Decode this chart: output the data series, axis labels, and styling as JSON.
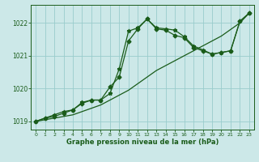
{
  "xlabel": "Graphe pression niveau de la mer (hPa)",
  "bg_color": "#cce8e8",
  "grid_color": "#99cccc",
  "line_color": "#1a5c1a",
  "ylim": [
    1018.75,
    1022.55
  ],
  "xlim": [
    -0.5,
    23.5
  ],
  "yticks": [
    1019,
    1020,
    1021,
    1022
  ],
  "xticks": [
    0,
    1,
    2,
    3,
    4,
    5,
    6,
    7,
    8,
    9,
    10,
    11,
    12,
    13,
    14,
    15,
    16,
    17,
    18,
    19,
    20,
    21,
    22,
    23
  ],
  "line1_x": [
    0,
    1,
    2,
    3,
    4,
    5,
    6,
    7,
    8,
    9,
    10,
    11,
    12,
    13,
    14,
    15,
    16,
    17,
    18,
    19,
    20,
    21,
    22,
    23
  ],
  "line1_y": [
    1019.0,
    1019.05,
    1019.1,
    1019.15,
    1019.2,
    1019.3,
    1019.4,
    1019.5,
    1019.65,
    1019.8,
    1019.95,
    1020.15,
    1020.35,
    1020.55,
    1020.7,
    1020.85,
    1021.0,
    1021.15,
    1021.3,
    1021.45,
    1021.6,
    1021.8,
    1022.0,
    1022.3
  ],
  "line2_x": [
    0,
    1,
    2,
    3,
    4,
    5,
    6,
    7,
    8,
    9,
    10,
    11,
    12,
    13,
    14,
    15,
    16,
    17,
    18,
    19,
    20,
    21,
    22,
    23
  ],
  "line2_y": [
    1019.0,
    1019.1,
    1019.15,
    1019.25,
    1019.35,
    1019.55,
    1019.65,
    1019.65,
    1020.05,
    1020.35,
    1021.45,
    1021.82,
    1022.12,
    1021.82,
    1021.78,
    1021.62,
    1021.55,
    1021.25,
    1021.15,
    1021.05,
    1021.1,
    1021.15,
    1022.05,
    1022.3
  ],
  "line3_x": [
    0,
    1,
    2,
    3,
    4,
    5,
    6,
    7,
    8,
    9,
    10,
    11,
    12,
    13,
    14,
    15,
    16,
    17,
    18,
    19,
    20,
    21,
    22,
    23
  ],
  "line3_y": [
    1019.0,
    1019.1,
    1019.2,
    1019.3,
    1019.35,
    1019.58,
    1019.65,
    1019.65,
    1019.85,
    1020.6,
    1021.75,
    1021.85,
    1022.12,
    1021.85,
    1021.82,
    1021.78,
    1021.58,
    1021.3,
    1021.18,
    1021.05,
    1021.1,
    1021.15,
    1022.05,
    1022.3
  ]
}
